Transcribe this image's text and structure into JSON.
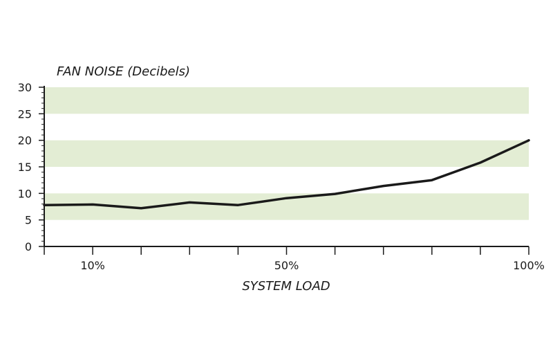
{
  "chart_data": {
    "type": "line",
    "ylabel": "FAN NOISE (Decibels)",
    "xlabel": "SYSTEM LOAD",
    "xlim": [
      0,
      100
    ],
    "ylim": [
      0,
      30
    ],
    "y_ticks": [
      "0",
      "5",
      "10",
      "15",
      "20",
      "25",
      "30"
    ],
    "x_ticks": [
      {
        "value": 10,
        "label": "10%"
      },
      {
        "value": 50,
        "label": "50%"
      },
      {
        "value": 100,
        "label": "100%"
      }
    ],
    "x_major_ticks": [
      0,
      10,
      20,
      30,
      40,
      50,
      60,
      70,
      80,
      90,
      100
    ],
    "bands": [
      [
        5,
        10
      ],
      [
        15,
        20
      ],
      [
        25,
        30
      ]
    ],
    "band_color": "#e3edd4",
    "line_color": "#1a1a1a",
    "series": [
      {
        "x": [
          0,
          10,
          20,
          30,
          40,
          50,
          60,
          70,
          80,
          90,
          100
        ],
        "values": [
          7.8,
          7.9,
          7.2,
          8.3,
          7.8,
          9.1,
          9.9,
          11.4,
          12.5,
          15.8,
          20
        ]
      }
    ]
  }
}
